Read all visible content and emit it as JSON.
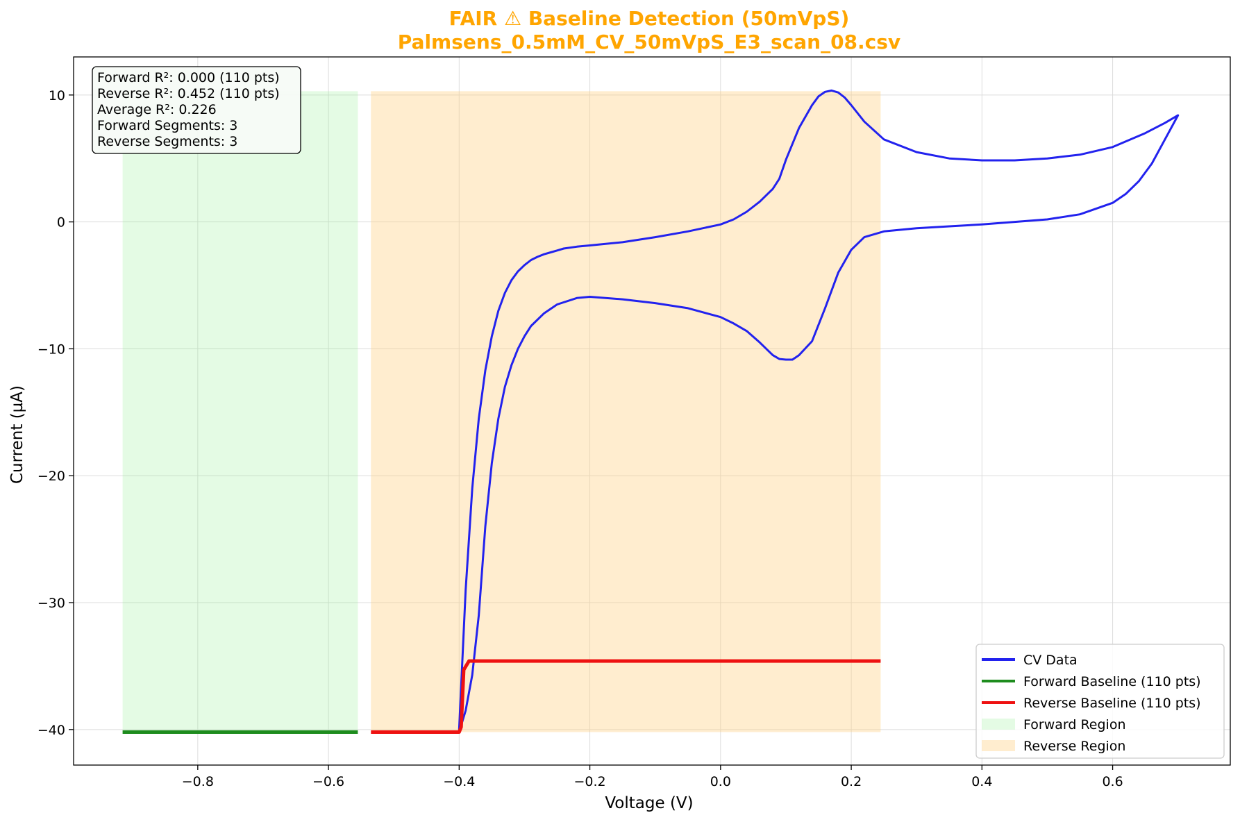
{
  "chart_data": {
    "type": "line",
    "title": "FAIR ⚠ Baseline Detection (50mVpS)",
    "subtitle": "Palmsens_0.5mM_CV_50mVpS_E3_scan_08.csv",
    "title_color": "#FFA500",
    "xlabel": "Voltage (V)",
    "ylabel": "Current (µA)",
    "xlim": [
      -0.99,
      0.78
    ],
    "ylim": [
      -42.8,
      13.0
    ],
    "x_ticks": [
      -0.8,
      -0.6,
      -0.4,
      -0.2,
      0.0,
      0.2,
      0.4,
      0.6
    ],
    "x_tick_labels": [
      "−0.8",
      "−0.6",
      "−0.4",
      "−0.2",
      "0.0",
      "0.2",
      "0.4",
      "0.6"
    ],
    "y_ticks": [
      -40,
      -30,
      -20,
      -10,
      0,
      10
    ],
    "y_tick_labels": [
      "−40",
      "−30",
      "−20",
      "−10",
      "0",
      "10"
    ],
    "grid": true,
    "legend_position": "lower-right",
    "info_box": {
      "position": "top-left",
      "lines": [
        "Forward R²: 0.000 (110 pts)",
        "Reverse R²: 0.452 (110 pts)",
        "Average R²: 0.226",
        "Forward Segments: 3",
        "Reverse Segments: 3"
      ]
    },
    "regions": [
      {
        "name": "Forward Region",
        "x": [
          -0.915,
          -0.555
        ],
        "y": [
          -40.2,
          10.3
        ],
        "color": "#90EE90",
        "opacity": 0.24
      },
      {
        "name": "Reverse Region",
        "x": [
          -0.535,
          0.245
        ],
        "y": [
          -40.2,
          10.3
        ],
        "color": "#FFD080",
        "opacity": 0.38
      }
    ],
    "series": [
      {
        "name": "CV Data",
        "color": "#2222EE",
        "width": 3,
        "x": [
          -0.4,
          -0.39,
          -0.38,
          -0.37,
          -0.36,
          -0.35,
          -0.34,
          -0.33,
          -0.32,
          -0.31,
          -0.3,
          -0.29,
          -0.28,
          -0.27,
          -0.26,
          -0.25,
          -0.24,
          -0.22,
          -0.2,
          -0.15,
          -0.1,
          -0.05,
          0.0,
          0.02,
          0.04,
          0.06,
          0.08,
          0.09,
          0.1,
          0.12,
          0.14,
          0.15,
          0.16,
          0.17,
          0.18,
          0.19,
          0.2,
          0.22,
          0.25,
          0.3,
          0.35,
          0.4,
          0.45,
          0.5,
          0.55,
          0.6,
          0.65,
          0.68,
          0.7,
          0.68,
          0.66,
          0.64,
          0.62,
          0.6,
          0.55,
          0.5,
          0.45,
          0.4,
          0.35,
          0.3,
          0.25,
          0.22,
          0.2,
          0.18,
          0.16,
          0.14,
          0.12,
          0.11,
          0.1,
          0.09,
          0.08,
          0.06,
          0.04,
          0.02,
          0.0,
          -0.05,
          -0.1,
          -0.15,
          -0.2,
          -0.22,
          -0.25,
          -0.27,
          -0.29,
          -0.3,
          -0.31,
          -0.32,
          -0.33,
          -0.34,
          -0.35,
          -0.36,
          -0.37,
          -0.38,
          -0.39,
          -0.4
        ],
        "y": [
          -40.0,
          -29.0,
          -21.0,
          -15.5,
          -11.7,
          -9.0,
          -7.0,
          -5.6,
          -4.6,
          -3.9,
          -3.4,
          -3.0,
          -2.75,
          -2.55,
          -2.4,
          -2.25,
          -2.1,
          -1.95,
          -1.85,
          -1.6,
          -1.2,
          -0.75,
          -0.2,
          0.2,
          0.8,
          1.6,
          2.6,
          3.4,
          4.9,
          7.4,
          9.2,
          9.9,
          10.25,
          10.35,
          10.2,
          9.8,
          9.2,
          7.9,
          6.5,
          5.5,
          5.0,
          4.85,
          4.85,
          5.0,
          5.3,
          5.9,
          7.0,
          7.8,
          8.4,
          6.5,
          4.6,
          3.2,
          2.2,
          1.5,
          0.6,
          0.2,
          0.0,
          -0.2,
          -0.35,
          -0.5,
          -0.75,
          -1.2,
          -2.2,
          -4.0,
          -6.8,
          -9.4,
          -10.5,
          -10.85,
          -10.85,
          -10.8,
          -10.5,
          -9.5,
          -8.6,
          -8.0,
          -7.5,
          -6.8,
          -6.4,
          -6.1,
          -5.9,
          -6.0,
          -6.5,
          -7.2,
          -8.2,
          -9.0,
          -10.0,
          -11.3,
          -13.0,
          -15.5,
          -19.0,
          -24.0,
          -31.0,
          -35.7,
          -38.5,
          -40.2
        ]
      },
      {
        "name": "Forward Baseline (110 pts)",
        "color": "#1E8C1E",
        "width": 5,
        "x": [
          -0.915,
          -0.555
        ],
        "y": [
          -40.2,
          -40.2
        ]
      },
      {
        "name": "Reverse Baseline (110 pts)",
        "color": "#EE1111",
        "width": 5,
        "x": [
          -0.535,
          -0.4,
          -0.397,
          -0.393,
          -0.385,
          -0.3,
          0.0,
          0.245
        ],
        "y": [
          -40.2,
          -40.2,
          -39.8,
          -35.3,
          -34.6,
          -34.6,
          -34.6,
          -34.6
        ]
      }
    ],
    "legend": [
      {
        "label": "CV Data",
        "kind": "line",
        "color": "#2222EE"
      },
      {
        "label": "Forward Baseline (110 pts)",
        "kind": "line",
        "color": "#1E8C1E"
      },
      {
        "label": "Reverse Baseline (110 pts)",
        "kind": "line",
        "color": "#EE1111"
      },
      {
        "label": "Forward Region",
        "kind": "patch",
        "color": "#90EE90",
        "opacity": 0.24
      },
      {
        "label": "Reverse Region",
        "kind": "patch",
        "color": "#FFD080",
        "opacity": 0.38
      }
    ]
  }
}
